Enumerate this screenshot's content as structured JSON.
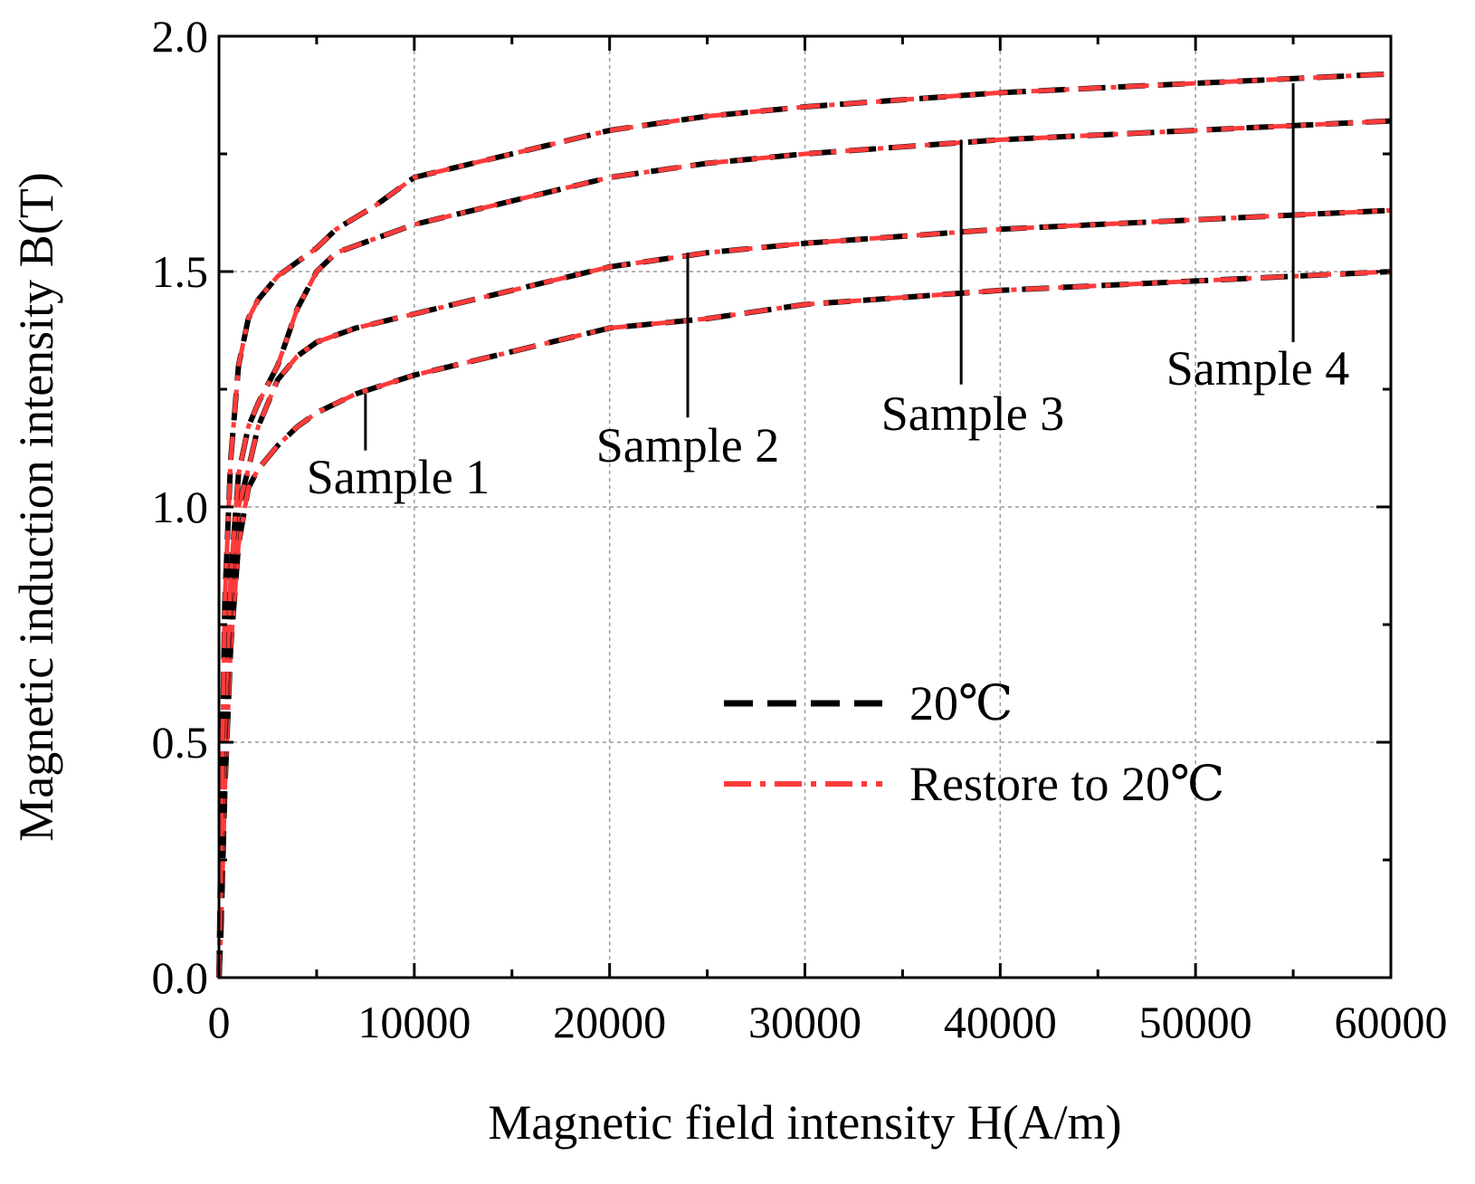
{
  "chart_data": {
    "type": "line",
    "xlabel": "Magnetic field intensity H(A/m)",
    "ylabel": "Magnetic induction intensity B(T)",
    "xlim": [
      0,
      60000
    ],
    "ylim": [
      0,
      2.0
    ],
    "xticks": [
      "0",
      "10000",
      "20000",
      "30000",
      "40000",
      "50000",
      "60000"
    ],
    "yticks": [
      "0.0",
      "0.5",
      "1.0",
      "1.5",
      "2.0"
    ],
    "grid": true,
    "legend_position": "center-right",
    "legend": [
      {
        "label": "20℃",
        "color": "#000000",
        "style": "dashed"
      },
      {
        "label": "Restore to 20℃",
        "color": "#ff3b3b",
        "style": "dash-dot"
      }
    ],
    "samples": [
      {
        "label": "Sample 1",
        "x": [
          0,
          100,
          300,
          600,
          1000,
          1500,
          2000,
          3000,
          4000,
          5000,
          7000,
          10000,
          15000,
          20000,
          25000,
          30000,
          40000,
          50000,
          60000
        ],
        "y": [
          0,
          0.1,
          0.4,
          0.7,
          0.92,
          1.04,
          1.08,
          1.13,
          1.17,
          1.2,
          1.24,
          1.28,
          1.33,
          1.38,
          1.4,
          1.43,
          1.46,
          1.48,
          1.5
        ]
      },
      {
        "label": "Sample 2",
        "x": [
          0,
          100,
          300,
          600,
          1000,
          1500,
          2000,
          3000,
          4000,
          5000,
          7000,
          10000,
          15000,
          20000,
          25000,
          30000,
          40000,
          50000,
          60000
        ],
        "y": [
          0,
          0.15,
          0.5,
          0.8,
          1.0,
          1.08,
          1.17,
          1.27,
          1.32,
          1.35,
          1.38,
          1.41,
          1.46,
          1.51,
          1.54,
          1.56,
          1.59,
          1.61,
          1.63
        ]
      },
      {
        "label": "Sample 3",
        "x": [
          0,
          100,
          300,
          600,
          1000,
          1500,
          2000,
          3000,
          4000,
          5000,
          6000,
          10000,
          15000,
          20000,
          25000,
          30000,
          40000,
          50000,
          60000
        ],
        "y": [
          0,
          0.15,
          0.55,
          0.85,
          1.07,
          1.17,
          1.22,
          1.3,
          1.42,
          1.5,
          1.54,
          1.6,
          1.65,
          1.7,
          1.73,
          1.75,
          1.78,
          1.8,
          1.82
        ]
      },
      {
        "label": "Sample 4",
        "x": [
          0,
          100,
          300,
          600,
          1000,
          1500,
          2000,
          3000,
          4000,
          5000,
          6000,
          8000,
          10000,
          15000,
          20000,
          25000,
          30000,
          40000,
          50000,
          60000
        ],
        "y": [
          0,
          0.3,
          0.8,
          1.1,
          1.3,
          1.4,
          1.44,
          1.49,
          1.52,
          1.55,
          1.59,
          1.64,
          1.7,
          1.75,
          1.8,
          1.83,
          1.85,
          1.88,
          1.9,
          1.92
        ]
      }
    ],
    "annotations": [
      {
        "text": "Sample 1",
        "pointer_x": 7500,
        "pointer_y_top": 1.24,
        "pointer_y_bottom": 1.12
      },
      {
        "text": "Sample 2",
        "pointer_x": 24000,
        "pointer_y_top": 1.54,
        "pointer_y_bottom": 1.19
      },
      {
        "text": "Sample 3",
        "pointer_x": 38000,
        "pointer_y_top": 1.78,
        "pointer_y_bottom": 1.26
      },
      {
        "text": "Sample 4",
        "pointer_x": 55000,
        "pointer_y_top": 1.9,
        "pointer_y_bottom": 1.35
      }
    ]
  }
}
